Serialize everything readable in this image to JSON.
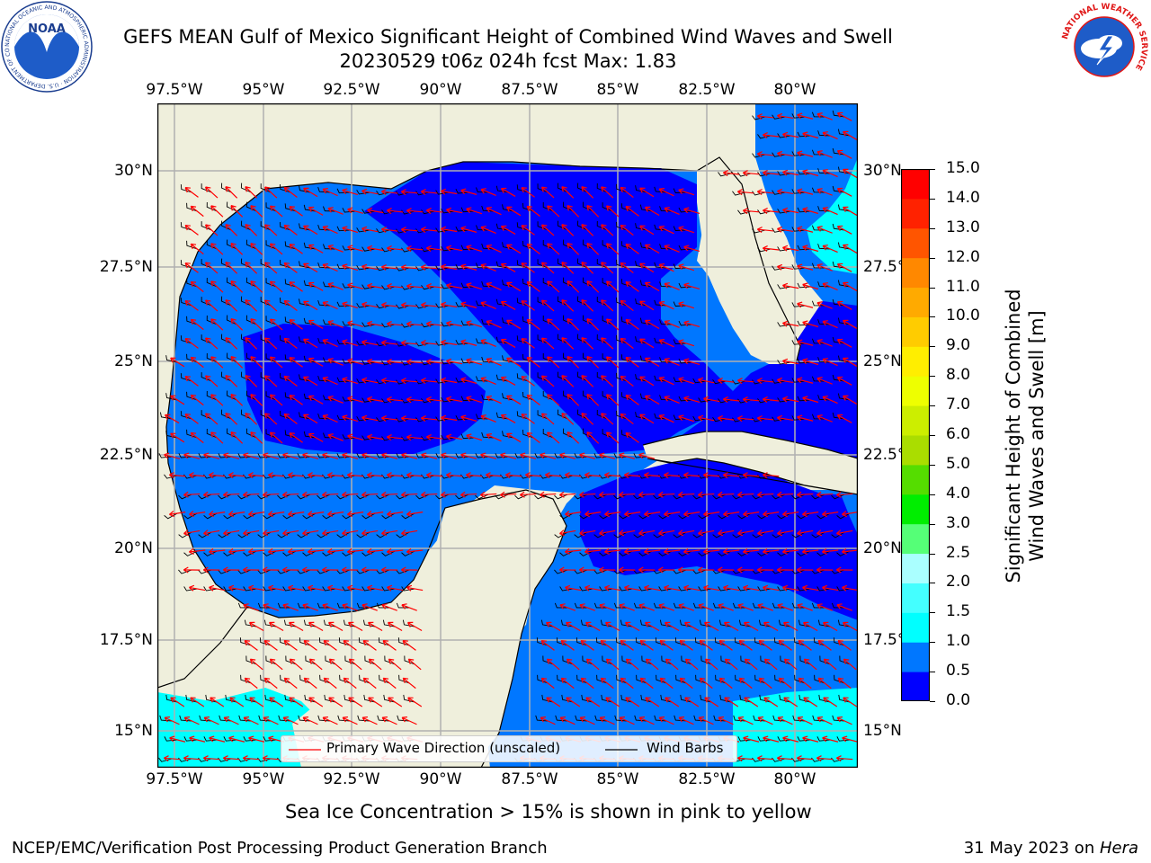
{
  "title": {
    "line1": "GEFS MEAN Gulf of Mexico Significant Height of Combined Wind Waves and Swell",
    "line2": "20230529 t06z 024h fcst   Max: 1.83"
  },
  "x_ticks": [
    "97.5°W",
    "95°W",
    "92.5°W",
    "90°W",
    "87.5°W",
    "85°W",
    "82.5°W",
    "80°W"
  ],
  "y_ticks_left": [
    "30°N",
    "27.5°N",
    "25°N",
    "22.5°N",
    "20°N",
    "17.5°N",
    "15°N"
  ],
  "y_ticks_right": [
    "30°N",
    "27.5°N",
    "25°N",
    "22.5°N",
    "20°N",
    "17.5°N",
    "15°N"
  ],
  "legend": {
    "wave_label": "Primary Wave Direction (unscaled)",
    "barb_label": "Wind Barbs"
  },
  "colorbar": {
    "label_line1": "Significant Height of Combined",
    "label_line2": "Wind Waves and Swell [m]",
    "ticks": [
      "0.0",
      "0.5",
      "1.0",
      "1.5",
      "2.0",
      "2.5",
      "3.0",
      "4.0",
      "5.0",
      "6.0",
      "7.0",
      "8.0",
      "9.0",
      "10.0",
      "11.0",
      "12.0",
      "13.0",
      "14.0",
      "15.0"
    ],
    "colors": [
      "#0000ff",
      "#0077ff",
      "#00ffff",
      "#44ffff",
      "#aaffff",
      "#55ff77",
      "#00ee00",
      "#55dd00",
      "#aadd00",
      "#ccee00",
      "#eeff00",
      "#ffee00",
      "#ffcc00",
      "#ffaa00",
      "#ff8800",
      "#ff5500",
      "#ff2200",
      "#ff0000"
    ]
  },
  "colors": {
    "land": "#efefdc",
    "wave_low": "#0000ff",
    "wave_mid": "#0077ff",
    "wave_high": "#00ffff",
    "arrow": "#ff0000",
    "barb": "#000000",
    "grid": "#b0b0b0"
  },
  "notes": {
    "sea_ice": "Sea Ice Concentration > 15% is shown in pink to yellow"
  },
  "footer": {
    "left": "NCEP/EMC/Verification Post Processing Product Generation Branch",
    "date": "31 May 2023 on ",
    "machine": "Hera"
  },
  "logos": {
    "noaa_text": "NOAA",
    "noaa_ring": "NATIONAL OCEANIC AND ATMOSPHERIC ADMINISTRATION · U.S. DEPARTMENT OF COMMERCE",
    "nws_ring": "NATIONAL WEATHER SERVICE"
  }
}
